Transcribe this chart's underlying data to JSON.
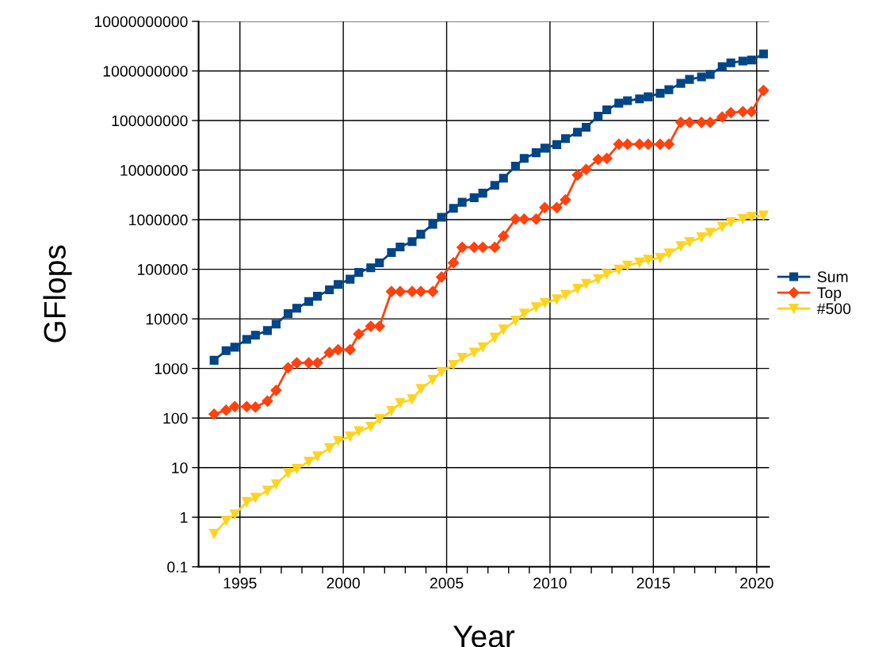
{
  "chart_data": {
    "type": "line",
    "xlabel": "Year",
    "ylabel": "GFlops",
    "log": "y",
    "grid": true,
    "legend": "right",
    "line_style": "solid",
    "xlim": [
      1993,
      2020.6
    ],
    "xticks": [
      {
        "value": 1994,
        "label": null
      },
      1995,
      {
        "value": 1996,
        "label": null
      },
      {
        "value": 1997,
        "label": null
      },
      {
        "value": 1998,
        "label": null
      },
      {
        "value": 1999,
        "label": null
      },
      2000,
      {
        "value": 2001,
        "label": null
      },
      {
        "value": 2002,
        "label": null
      },
      {
        "value": 2003,
        "label": null
      },
      {
        "value": 2004,
        "label": null
      },
      2005,
      {
        "value": 2006,
        "label": null
      },
      {
        "value": 2007,
        "label": null
      },
      {
        "value": 2008,
        "label": null
      },
      {
        "value": 2009,
        "label": null
      },
      2010,
      {
        "value": 2011,
        "label": null
      },
      {
        "value": 2012,
        "label": null
      },
      {
        "value": 2013,
        "label": null
      },
      {
        "value": 2014,
        "label": null
      },
      2015,
      {
        "value": 2016,
        "label": null
      },
      {
        "value": 2017,
        "label": null
      },
      {
        "value": 2018,
        "label": null
      },
      {
        "value": 2019,
        "label": null
      },
      2020
    ],
    "ylim": [
      0.1,
      10000000000
    ],
    "yticks": [
      0.1,
      1,
      10,
      100,
      1000,
      10000,
      100000,
      1000000,
      10000000,
      100000000,
      1000000000,
      10000000000
    ],
    "x": [
      1993.75,
      1994.33,
      1994.75,
      1995.33,
      1995.75,
      1996.33,
      1996.75,
      1997.33,
      1997.75,
      1998.33,
      1998.75,
      1999.33,
      1999.75,
      2000.33,
      2000.75,
      2001.33,
      2001.75,
      2002.33,
      2002.75,
      2003.33,
      2003.75,
      2004.33,
      2004.75,
      2005.33,
      2005.75,
      2006.33,
      2006.75,
      2007.33,
      2007.75,
      2008.33,
      2008.75,
      2009.33,
      2009.75,
      2010.33,
      2010.75,
      2011.33,
      2011.75,
      2012.33,
      2012.75,
      2013.33,
      2013.75,
      2014.33,
      2014.75,
      2015.33,
      2015.75,
      2016.33,
      2016.75,
      2017.33,
      2017.75,
      2018.33,
      2018.75,
      2019.33,
      2019.75,
      2020.33
    ],
    "series": [
      {
        "name": "Sum",
        "color": "#004586",
        "marker": "square",
        "values": [
          1460,
          2280,
          2680,
          3850,
          4690,
          5810,
          7820,
          12800,
          16400,
          22400,
          28600,
          38500,
          49300,
          63100,
          86300,
          107000,
          135000,
          217000,
          282000,
          361000,
          509000,
          807000,
          1120000,
          1690000,
          2240000,
          2770000,
          3430000,
          4930000,
          6850000,
          12000000,
          17200000,
          22400000,
          27700000,
          32700000,
          43200000,
          58100000,
          73100000,
          122000000,
          164000000,
          224000000,
          251000000,
          273000000,
          301000000,
          355000000,
          418000000,
          562000000,
          675000000,
          757000000,
          849000000,
          1220000000,
          1460000000,
          1580000000,
          1660000000,
          2200000000
        ]
      },
      {
        "name": "Top",
        "color": "#ff420e",
        "marker": "diamond",
        "values": [
          120,
          144,
          170,
          170,
          166,
          220,
          361,
          1030,
          1300,
          1300,
          1300,
          2090,
          2390,
          2390,
          4930,
          7080,
          7080,
          35500,
          35500,
          35500,
          35500,
          35500,
          69700,
          135000,
          277000,
          277000,
          277000,
          277000,
          469000,
          1030000,
          1030000,
          1030000,
          1750000,
          1750000,
          2510000,
          7940000,
          10300000,
          16400000,
          17200000,
          33200000,
          33200000,
          33200000,
          33200000,
          33200000,
          33200000,
          92000000,
          92000000,
          92000000,
          92000000,
          118000000,
          144000000,
          151000000,
          151000000,
          404000000
        ]
      },
      {
        "name": "#500",
        "color": "#ffd320",
        "marker": "triangle",
        "values": [
          0.46,
          0.85,
          1.14,
          2.03,
          2.47,
          3.43,
          4.61,
          7.82,
          9.5,
          13.2,
          16.9,
          24.7,
          34.4,
          42.5,
          54.5,
          66.3,
          95,
          139,
          200,
          239,
          385,
          590,
          849,
          1180,
          1640,
          2090,
          2680,
          4180,
          6110,
          9200,
          12800,
          17200,
          20900,
          24700,
          30600,
          40500,
          50900,
          63100,
          80700,
          98400,
          118000,
          137000,
          156000,
          169000,
          209000,
          291000,
          355000,
          440000,
          545000,
          719000,
          891000,
          1030000,
          1140000,
          1220000
        ]
      }
    ]
  }
}
